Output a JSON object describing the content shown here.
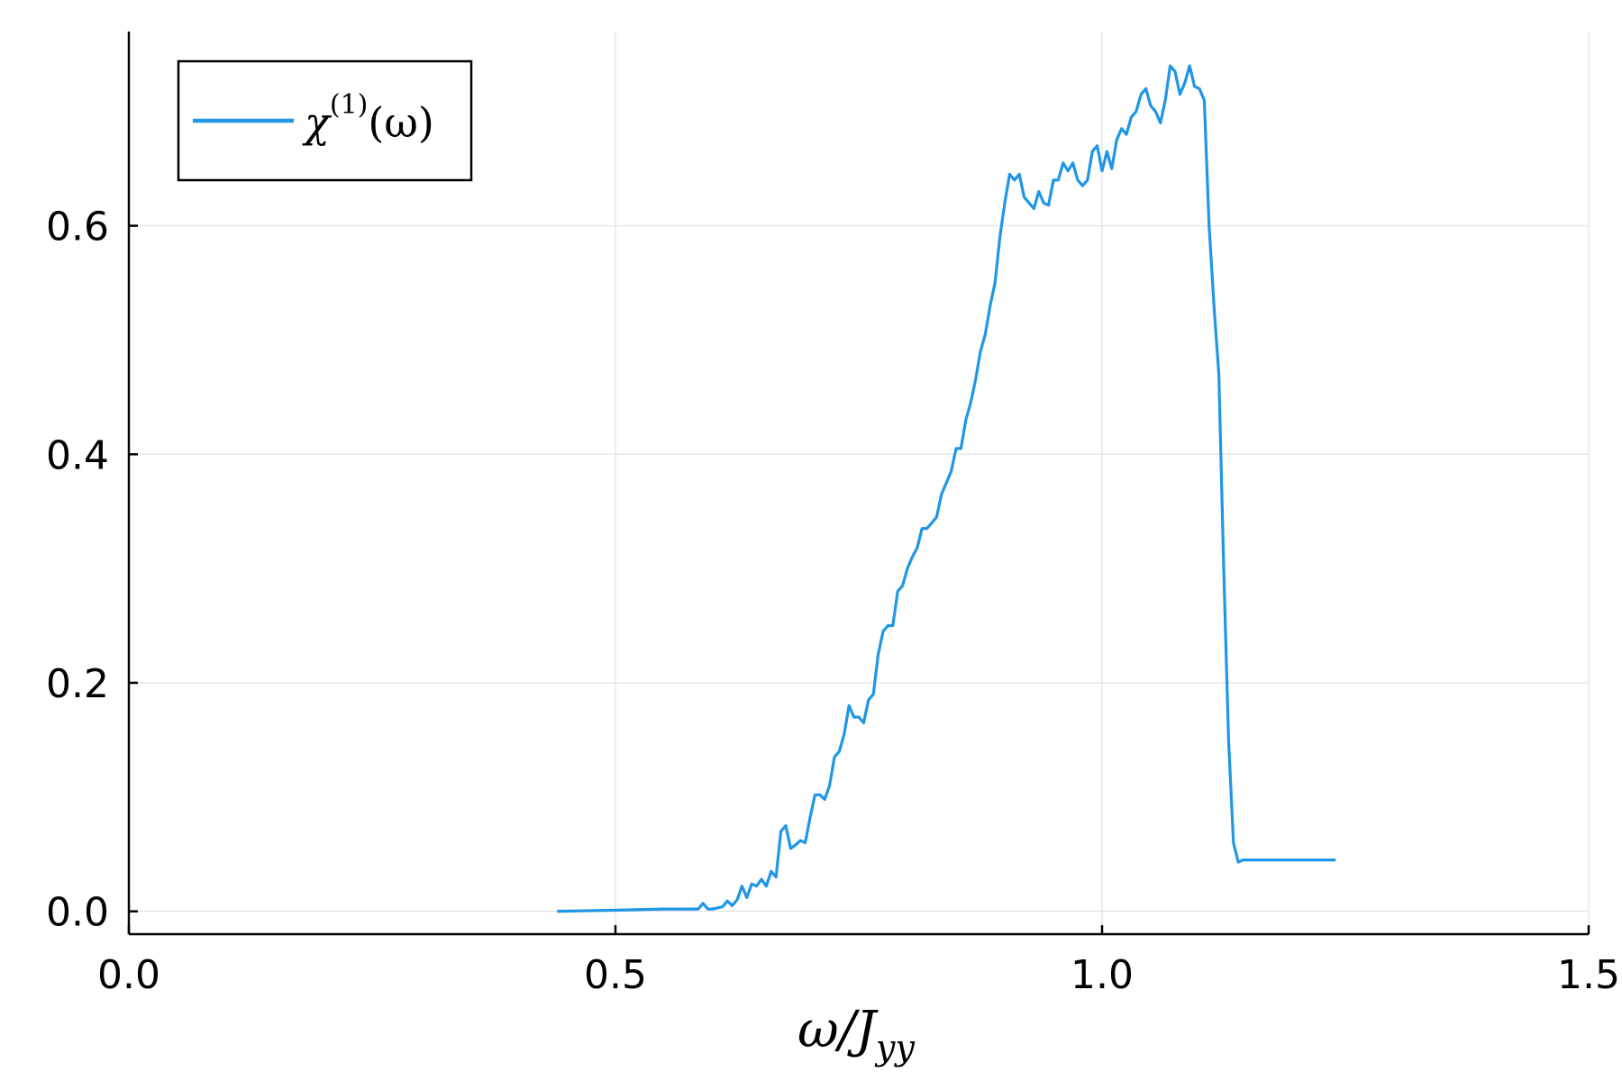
{
  "chart_data": {
    "type": "line",
    "title": "",
    "xlabel": "ω/J_yy",
    "xlabel_parts": {
      "main": "ω/J",
      "sub": "yy"
    },
    "ylabel": "",
    "xlim": [
      0.0,
      1.5
    ],
    "ylim": [
      -0.02,
      0.77
    ],
    "xticks": [
      {
        "value": 0.0,
        "label": "0.0"
      },
      {
        "value": 0.5,
        "label": "0.5"
      },
      {
        "value": 1.0,
        "label": "1.0"
      },
      {
        "value": 1.5,
        "label": "1.5"
      }
    ],
    "yticks": [
      {
        "value": 0.0,
        "label": "0.0"
      },
      {
        "value": 0.2,
        "label": "0.2"
      },
      {
        "value": 0.4,
        "label": "0.4"
      },
      {
        "value": 0.6,
        "label": "0.6"
      }
    ],
    "grid": true,
    "legend_position": "top-left",
    "series": [
      {
        "name": "χ(1)(ω)",
        "legend_parts": {
          "main": "χ",
          "sup": "(1)",
          "tail": "(ω)"
        },
        "color": "#1f96e6",
        "x": [
          0.44,
          0.5,
          0.55,
          0.585,
          0.59,
          0.595,
          0.6,
          0.61,
          0.615,
          0.62,
          0.625,
          0.63,
          0.635,
          0.64,
          0.645,
          0.65,
          0.655,
          0.66,
          0.665,
          0.67,
          0.675,
          0.68,
          0.685,
          0.69,
          0.695,
          0.7,
          0.705,
          0.71,
          0.715,
          0.72,
          0.725,
          0.73,
          0.735,
          0.74,
          0.745,
          0.75,
          0.755,
          0.76,
          0.765,
          0.77,
          0.775,
          0.78,
          0.785,
          0.79,
          0.795,
          0.8,
          0.805,
          0.81,
          0.815,
          0.82,
          0.825,
          0.83,
          0.835,
          0.84,
          0.845,
          0.85,
          0.855,
          0.86,
          0.865,
          0.87,
          0.875,
          0.88,
          0.885,
          0.89,
          0.895,
          0.9,
          0.905,
          0.91,
          0.915,
          0.92,
          0.925,
          0.93,
          0.935,
          0.94,
          0.945,
          0.95,
          0.955,
          0.96,
          0.965,
          0.97,
          0.975,
          0.98,
          0.985,
          0.99,
          0.995,
          1.0,
          1.005,
          1.01,
          1.015,
          1.02,
          1.025,
          1.03,
          1.035,
          1.04,
          1.045,
          1.05,
          1.055,
          1.06,
          1.065,
          1.07,
          1.075,
          1.08,
          1.085,
          1.09,
          1.095,
          1.1,
          1.105,
          1.11,
          1.115,
          1.12,
          1.125,
          1.13,
          1.135,
          1.14,
          1.145,
          1.15,
          1.155,
          1.16,
          1.165,
          1.17,
          1.175,
          1.18,
          1.185,
          1.19,
          1.195,
          1.2,
          1.205,
          1.21,
          1.215,
          1.22,
          1.225,
          1.23,
          1.235,
          1.24
        ],
        "values": [
          0.0,
          0.001,
          0.002,
          0.002,
          0.007,
          0.002,
          0.002,
          0.004,
          0.009,
          0.005,
          0.01,
          0.022,
          0.012,
          0.024,
          0.022,
          0.028,
          0.022,
          0.035,
          0.03,
          0.07,
          0.075,
          0.055,
          0.058,
          0.062,
          0.06,
          0.082,
          0.102,
          0.102,
          0.098,
          0.11,
          0.135,
          0.14,
          0.155,
          0.18,
          0.17,
          0.17,
          0.165,
          0.185,
          0.19,
          0.225,
          0.245,
          0.25,
          0.25,
          0.28,
          0.285,
          0.3,
          0.31,
          0.318,
          0.335,
          0.335,
          0.34,
          0.345,
          0.365,
          0.375,
          0.385,
          0.405,
          0.405,
          0.43,
          0.445,
          0.465,
          0.49,
          0.505,
          0.53,
          0.55,
          0.59,
          0.62,
          0.645,
          0.64,
          0.645,
          0.625,
          0.62,
          0.615,
          0.63,
          0.62,
          0.618,
          0.64,
          0.64,
          0.655,
          0.648,
          0.655,
          0.64,
          0.635,
          0.64,
          0.665,
          0.67,
          0.648,
          0.665,
          0.65,
          0.675,
          0.685,
          0.68,
          0.695,
          0.7,
          0.715,
          0.72,
          0.705,
          0.7,
          0.69,
          0.71,
          0.74,
          0.735,
          0.715,
          0.725,
          0.74,
          0.722,
          0.72,
          0.71,
          0.6,
          0.53,
          0.47,
          0.3,
          0.15,
          0.06,
          0.043,
          0.045,
          0.045,
          0.045,
          0.045,
          0.045,
          0.045,
          0.045,
          0.045,
          0.045,
          0.045,
          0.045,
          0.045,
          0.045,
          0.045,
          0.045,
          0.045,
          0.045,
          0.045,
          0.045,
          0.045
        ]
      }
    ]
  }
}
